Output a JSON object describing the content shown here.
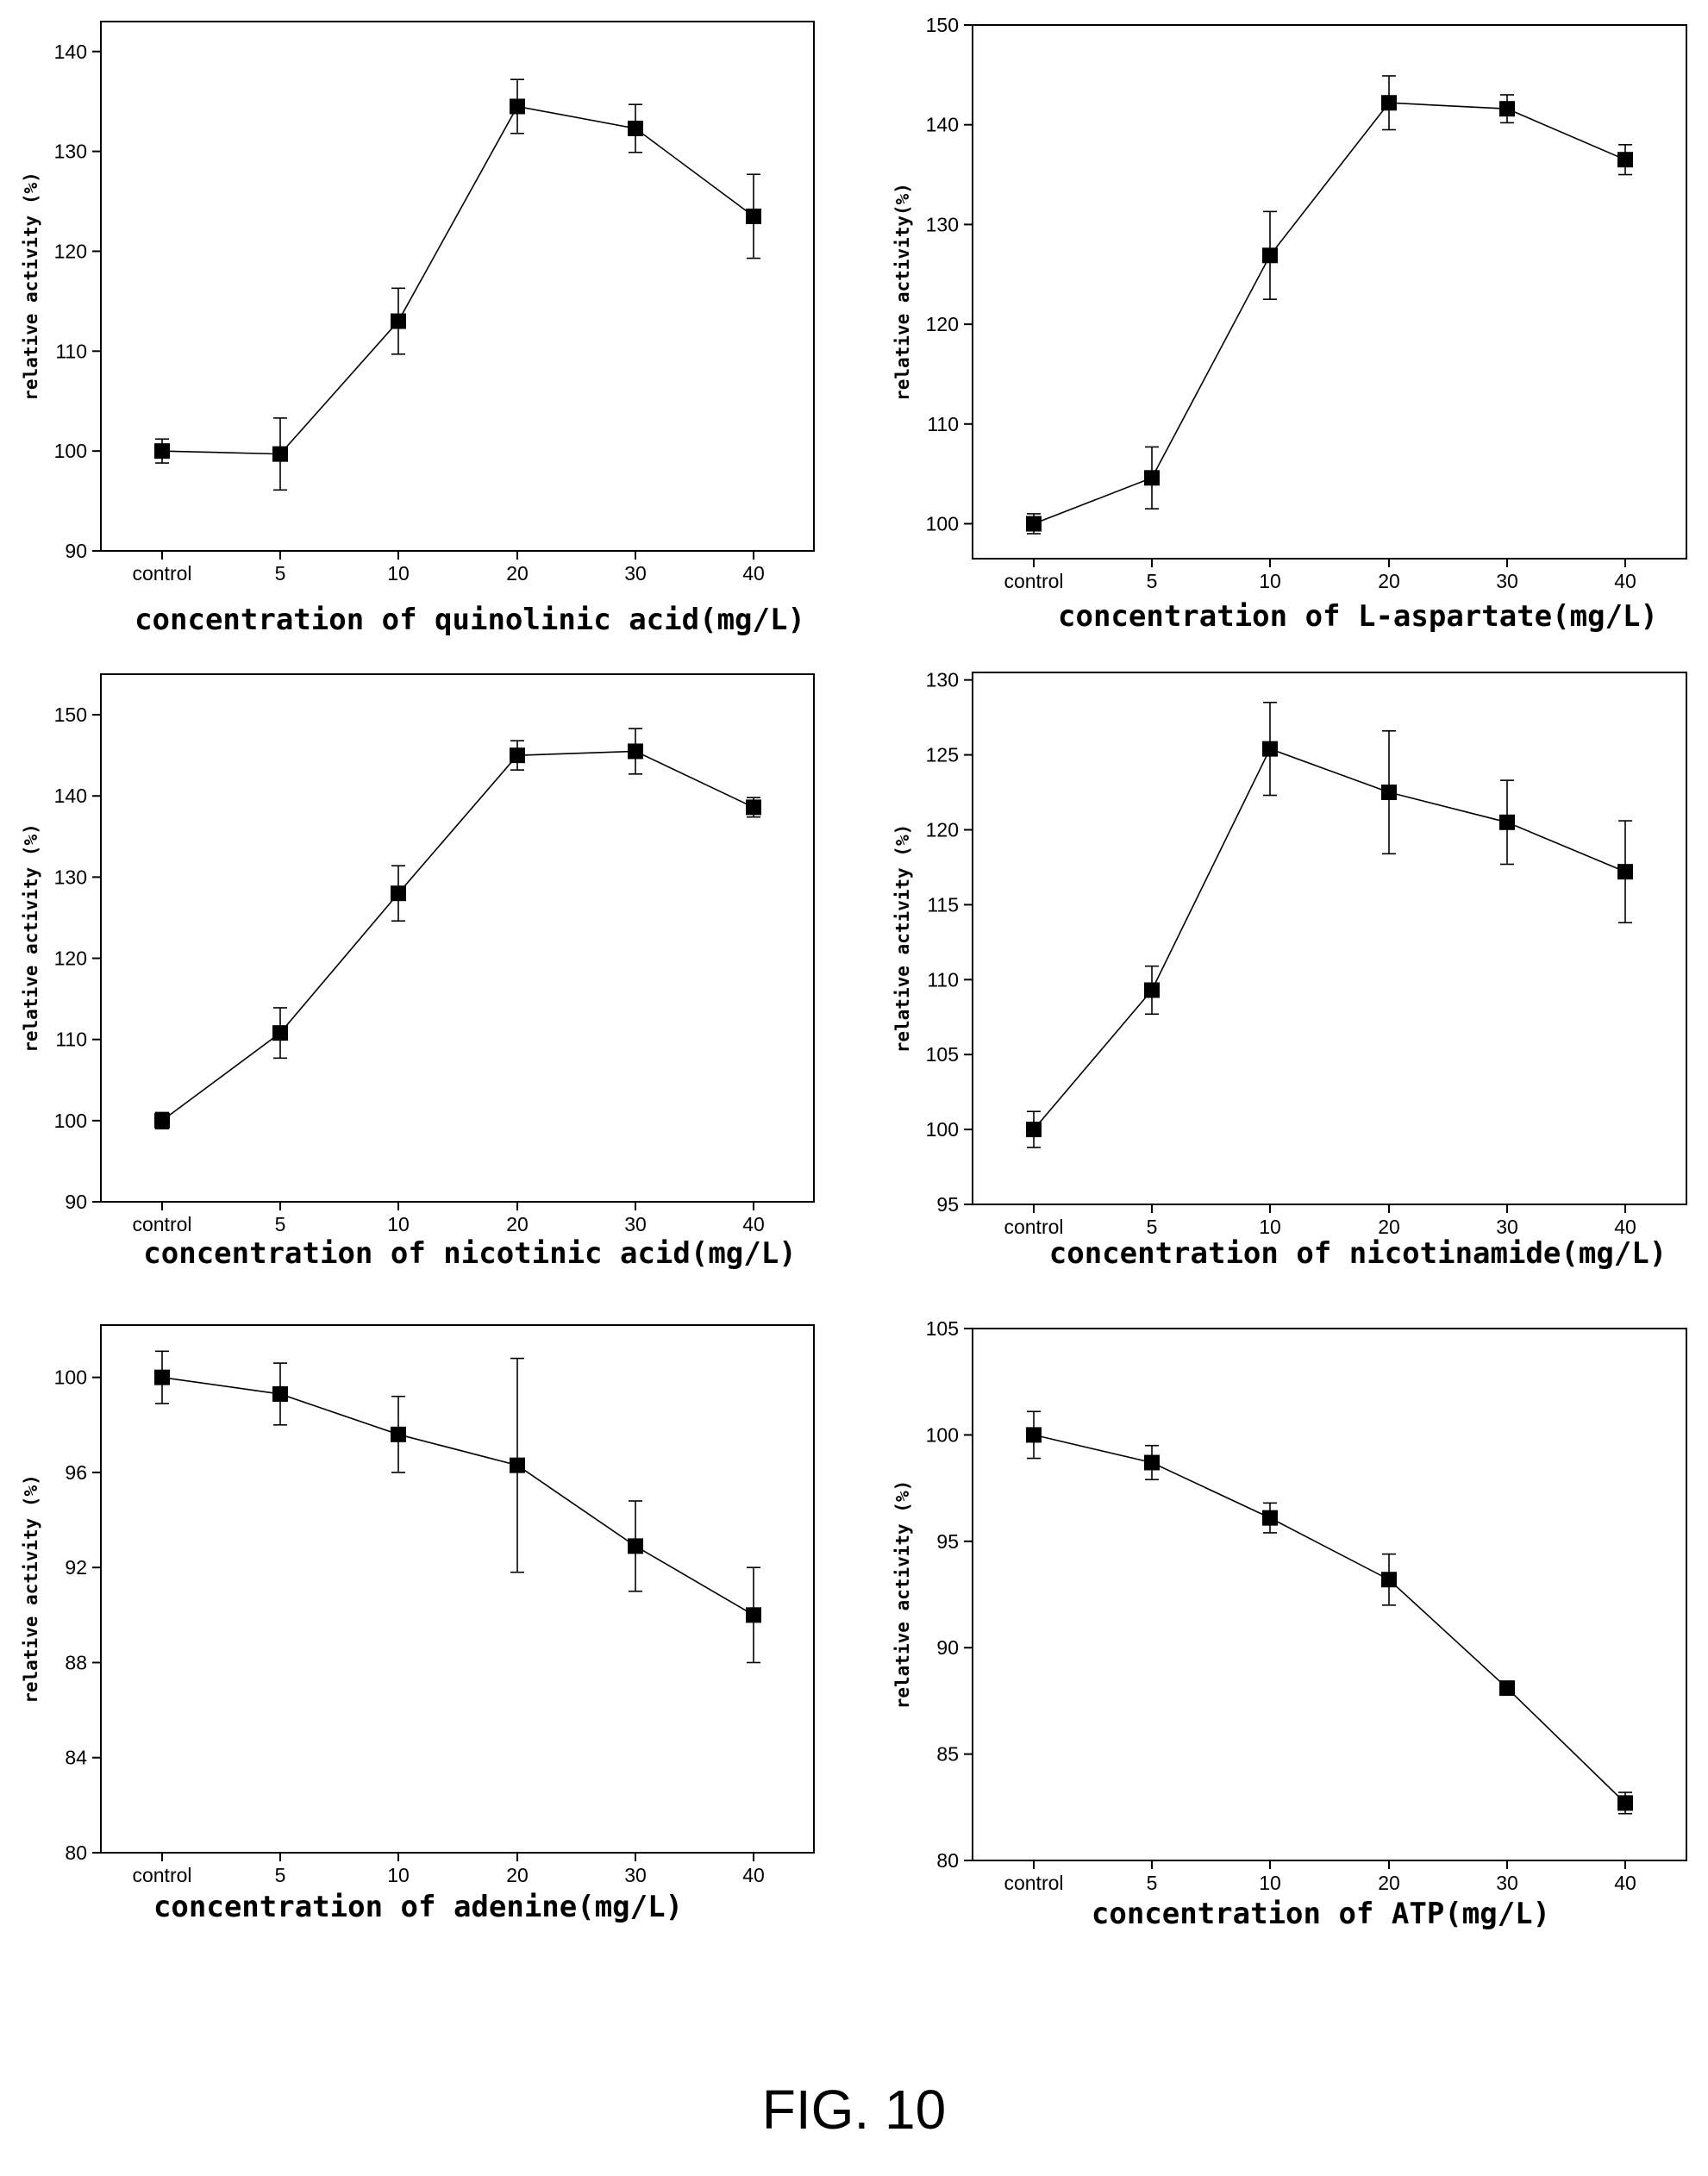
{
  "figure_caption": "FIG. 10",
  "chart_data": [
    {
      "type": "line",
      "title": "",
      "xlabel": "concentration of  quinolinic acid(mg/L)",
      "ylabel": "relative activity (%)",
      "categories": [
        "control",
        "5",
        "10",
        "20",
        "30",
        "40"
      ],
      "yticks": [
        90,
        100,
        110,
        120,
        130,
        140
      ],
      "ylim": [
        90,
        143
      ],
      "series": [
        {
          "values": [
            100,
            99.7,
            113,
            134.5,
            132.3,
            123.5
          ],
          "errors": [
            1.2,
            3.6,
            3.3,
            2.7,
            2.4,
            4.2
          ]
        }
      ],
      "grid": false,
      "marker": "filled-square",
      "error_bars": true
    },
    {
      "type": "line",
      "title": "",
      "xlabel": "concentration of  L-aspartate(mg/L)",
      "ylabel": "relative activity(%)",
      "categories": [
        "control",
        "5",
        "10",
        "20",
        "30",
        "40"
      ],
      "yticks": [
        100,
        110,
        120,
        130,
        140,
        150
      ],
      "ylim": [
        96.5,
        150
      ],
      "series": [
        {
          "values": [
            100,
            104.6,
            126.9,
            142.2,
            141.6,
            136.5
          ],
          "errors": [
            1.0,
            3.1,
            4.4,
            2.7,
            1.4,
            1.5
          ]
        }
      ],
      "grid": false,
      "marker": "filled-square",
      "error_bars": true
    },
    {
      "type": "line",
      "title": "",
      "xlabel": "concentration of  nicotinic acid(mg/L)",
      "ylabel": "relative activity (%)",
      "categories": [
        "control",
        "5",
        "10",
        "20",
        "30",
        "40"
      ],
      "yticks": [
        90,
        100,
        110,
        120,
        130,
        140,
        150
      ],
      "ylim": [
        90,
        155
      ],
      "series": [
        {
          "values": [
            100,
            110.8,
            128,
            145,
            145.5,
            138.6
          ],
          "errors": [
            1.0,
            3.1,
            3.4,
            1.8,
            2.8,
            1.2
          ]
        }
      ],
      "grid": false,
      "marker": "filled-square",
      "error_bars": true
    },
    {
      "type": "line",
      "title": "",
      "xlabel": "concentration of  nicotinamide(mg/L)",
      "ylabel": "relative activity (%)",
      "categories": [
        "control",
        "5",
        "10",
        "20",
        "30",
        "40"
      ],
      "yticks": [
        95,
        100,
        105,
        110,
        115,
        120,
        125,
        130
      ],
      "ylim": [
        95,
        130.5
      ],
      "series": [
        {
          "values": [
            100,
            109.3,
            125.4,
            122.5,
            120.5,
            117.2
          ],
          "errors": [
            1.2,
            1.6,
            3.1,
            4.1,
            2.8,
            3.4
          ]
        }
      ],
      "grid": false,
      "marker": "filled-square",
      "error_bars": true
    },
    {
      "type": "line",
      "title": "",
      "xlabel": "concentration of  adenine(mg/L)",
      "ylabel": "relative activity (%)",
      "categories": [
        "control",
        "5",
        "10",
        "20",
        "30",
        "40"
      ],
      "yticks": [
        80,
        84,
        88,
        92,
        96,
        100
      ],
      "ylim": [
        80,
        102.2
      ],
      "series": [
        {
          "values": [
            100,
            99.3,
            97.6,
            96.3,
            92.9,
            90
          ],
          "errors": [
            1.1,
            1.3,
            1.6,
            4.5,
            1.9,
            2.0
          ]
        }
      ],
      "grid": false,
      "marker": "filled-square",
      "error_bars": true
    },
    {
      "type": "line",
      "title": "",
      "xlabel": "concentration of ATP(mg/L)",
      "ylabel": "relative activity (%)",
      "categories": [
        "control",
        "5",
        "10",
        "20",
        "30",
        "40"
      ],
      "yticks": [
        80,
        85,
        90,
        95,
        100,
        105
      ],
      "ylim": [
        80,
        105
      ],
      "series": [
        {
          "values": [
            100,
            98.7,
            96.1,
            93.2,
            88.1,
            82.7
          ],
          "errors": [
            1.1,
            0.8,
            0.7,
            1.2,
            0.3,
            0.5
          ]
        }
      ],
      "grid": false,
      "marker": "filled-square",
      "error_bars": true
    }
  ]
}
